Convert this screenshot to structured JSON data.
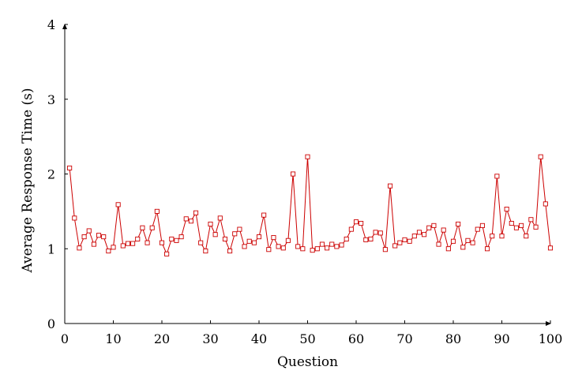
{
  "chart_data": {
    "type": "line",
    "title": "",
    "xlabel": "Question",
    "ylabel": "Average Response Time (s)",
    "xlim": [
      0,
      100
    ],
    "ylim": [
      0,
      4
    ],
    "x_ticks": [
      0,
      10,
      20,
      30,
      40,
      50,
      60,
      70,
      80,
      90,
      100
    ],
    "y_ticks": [
      0,
      1,
      2,
      3,
      4
    ],
    "grid": false,
    "legend": "none",
    "series": [
      {
        "color": "#cc0000",
        "marker": "square",
        "x": [
          1,
          2,
          3,
          4,
          5,
          6,
          7,
          8,
          9,
          10,
          11,
          12,
          13,
          14,
          15,
          16,
          17,
          18,
          19,
          20,
          21,
          22,
          23,
          24,
          25,
          26,
          27,
          28,
          29,
          30,
          31,
          32,
          33,
          34,
          35,
          36,
          37,
          38,
          39,
          40,
          41,
          42,
          43,
          44,
          45,
          46,
          47,
          48,
          49,
          50,
          51,
          52,
          53,
          54,
          55,
          56,
          57,
          58,
          59,
          60,
          61,
          62,
          63,
          64,
          65,
          66,
          67,
          68,
          69,
          70,
          71,
          72,
          73,
          74,
          75,
          76,
          77,
          78,
          79,
          80,
          81,
          82,
          83,
          84,
          85,
          86,
          87,
          88,
          89,
          90,
          91,
          92,
          93,
          94,
          95,
          96,
          97,
          98,
          99,
          100
        ],
        "y": [
          2.08,
          1.41,
          1.01,
          1.16,
          1.24,
          1.06,
          1.18,
          1.16,
          0.97,
          1.02,
          1.59,
          1.04,
          1.07,
          1.07,
          1.13,
          1.28,
          1.08,
          1.28,
          1.5,
          1.08,
          0.93,
          1.13,
          1.11,
          1.16,
          1.4,
          1.37,
          1.48,
          1.08,
          0.97,
          1.33,
          1.19,
          1.41,
          1.13,
          0.97,
          1.2,
          1.26,
          1.03,
          1.1,
          1.08,
          1.16,
          1.45,
          0.99,
          1.15,
          1.03,
          1.01,
          1.11,
          2.0,
          1.03,
          1.0,
          2.23,
          0.98,
          1.0,
          1.06,
          1.01,
          1.06,
          1.03,
          1.05,
          1.13,
          1.26,
          1.36,
          1.34,
          1.12,
          1.13,
          1.22,
          1.21,
          0.99,
          1.84,
          1.04,
          1.08,
          1.12,
          1.1,
          1.17,
          1.22,
          1.19,
          1.28,
          1.31,
          1.06,
          1.25,
          1.0,
          1.1,
          1.33,
          1.02,
          1.11,
          1.08,
          1.26,
          1.31,
          1.0,
          1.17,
          1.97,
          1.17,
          1.53,
          1.34,
          1.28,
          1.31,
          1.17,
          1.39,
          1.29,
          2.23,
          1.6,
          1.01
        ]
      }
    ]
  }
}
